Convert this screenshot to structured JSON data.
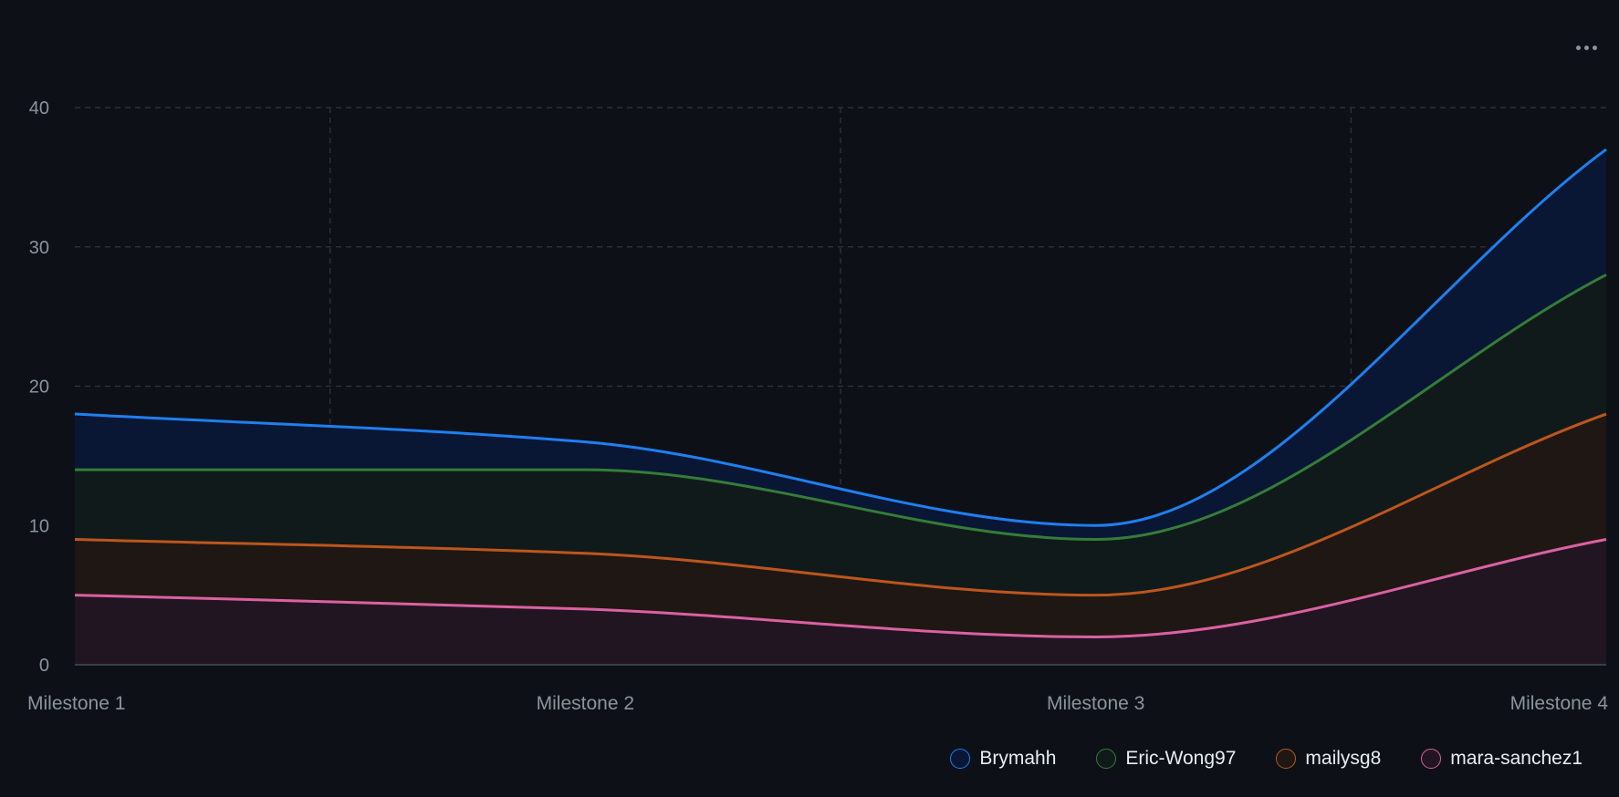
{
  "menu": {
    "icon": "more-horizontal-icon"
  },
  "chart_data": {
    "type": "area",
    "stacked": true,
    "title": "",
    "xlabel": "",
    "ylabel": "",
    "categories": [
      "Milestone 1",
      "Milestone 2",
      "Milestone 3",
      "Milestone 4"
    ],
    "ylim": [
      0,
      40
    ],
    "yticks": [
      0,
      10,
      20,
      30,
      40
    ],
    "grid": true,
    "legend_position": "bottom-right",
    "series": [
      {
        "name": "mara-sanchez1",
        "values": [
          5,
          4,
          2,
          9
        ],
        "color": "#db61a2",
        "fill": "#211521"
      },
      {
        "name": "mailysg8",
        "values": [
          4,
          4,
          3,
          9
        ],
        "color": "#bd561d",
        "fill": "#1f1713"
      },
      {
        "name": "Eric-Wong97",
        "values": [
          5,
          6,
          4,
          10
        ],
        "color": "#347d39",
        "fill": "#111a1b"
      },
      {
        "name": "Brymahh",
        "values": [
          4,
          2,
          1,
          9
        ],
        "color": "#1f7ff0",
        "fill": "#091634"
      }
    ],
    "legend_order": [
      "Brymahh",
      "Eric-Wong97",
      "mailysg8",
      "mara-sanchez1"
    ]
  }
}
